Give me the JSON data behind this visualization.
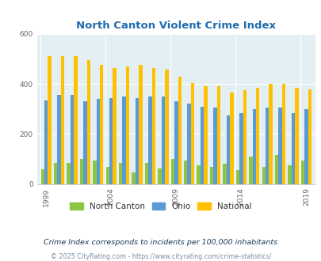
{
  "title": "North Canton Violent Crime Index",
  "years": [
    1999,
    2000,
    2001,
    2002,
    2003,
    2004,
    2005,
    2006,
    2007,
    2008,
    2009,
    2010,
    2011,
    2012,
    2013,
    2014,
    2015,
    2016,
    2017,
    2018,
    2019,
    2020
  ],
  "north_canton": [
    60,
    85,
    85,
    100,
    93,
    68,
    85,
    47,
    85,
    62,
    100,
    93,
    75,
    68,
    80,
    57,
    110,
    70,
    115,
    75,
    95,
    0
  ],
  "ohio": [
    335,
    355,
    355,
    330,
    340,
    345,
    350,
    345,
    350,
    350,
    330,
    320,
    310,
    305,
    275,
    285,
    300,
    305,
    305,
    285,
    298,
    0
  ],
  "national": [
    510,
    510,
    510,
    495,
    475,
    465,
    470,
    475,
    465,
    458,
    430,
    405,
    390,
    390,
    365,
    375,
    385,
    400,
    400,
    385,
    378,
    0
  ],
  "bar_width": 0.27,
  "ylim": [
    0,
    600
  ],
  "yticks": [
    0,
    200,
    400,
    600
  ],
  "color_nc": "#8dc63f",
  "color_ohio": "#5b9bd5",
  "color_national": "#ffc000",
  "bg_color": "#e4eff4",
  "grid_color": "#ffffff",
  "title_color": "#1f6cb0",
  "subtitle": "Crime Index corresponds to incidents per 100,000 inhabitants",
  "footer": "© 2025 CityRating.com - https://www.cityrating.com/crime-statistics/",
  "legend_labels": [
    "North Canton",
    "Ohio",
    "National"
  ],
  "subtitle_color": "#1a3a5c",
  "footer_color": "#7a8fa0"
}
